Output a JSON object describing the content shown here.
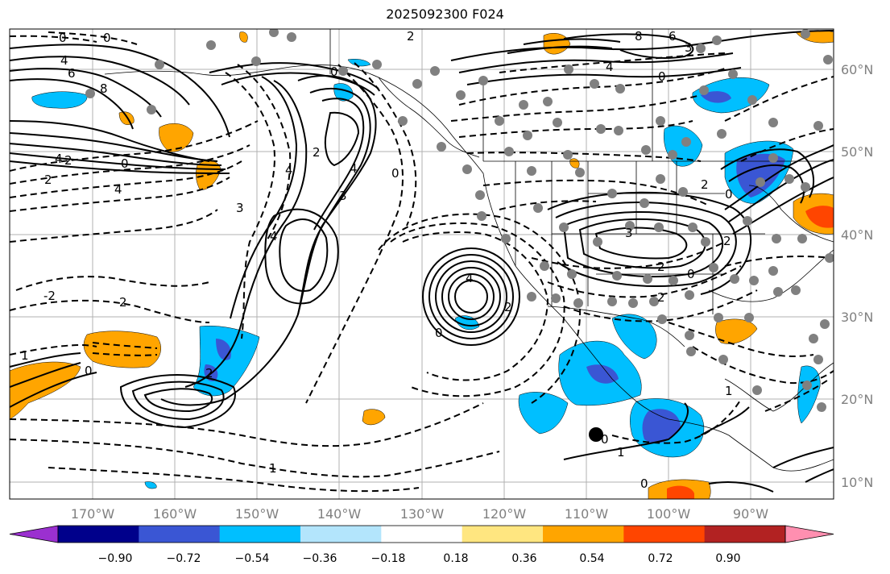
{
  "title": "2025092300 F024",
  "map": {
    "lat_labels": [
      "60°N",
      "50°N",
      "40°N",
      "30°N",
      "20°N",
      "10°N"
    ],
    "lon_labels": [
      "170°W",
      "160°W",
      "150°W",
      "140°W",
      "130°W",
      "120°W",
      "110°W",
      "100°W",
      "90°W"
    ],
    "contour_labels": [
      "0",
      "0",
      "4",
      "6",
      "8",
      "4",
      "2",
      "2",
      "2",
      "0",
      "4",
      "0",
      "2",
      "4",
      "3",
      "4",
      "4",
      "2",
      "0",
      "0",
      "1",
      "2",
      "3",
      "4",
      "2",
      "0",
      "8",
      "6",
      "3",
      "4",
      "0",
      "3",
      "2",
      "2",
      "0",
      "2",
      "2",
      "0",
      "1",
      "0",
      "1",
      "0",
      "1",
      "-2"
    ]
  },
  "colorbar": {
    "ticks": [
      "−0.90",
      "−0.72",
      "−0.54",
      "−0.36",
      "−0.18",
      "0.18",
      "0.36",
      "0.54",
      "0.72",
      "0.90"
    ],
    "colors": [
      "#9b30d0",
      "#00008b",
      "#3a56d4",
      "#00bfff",
      "#b3e5fc",
      "#ffffff",
      "#ffe680",
      "#ffa500",
      "#ff4500",
      "#b22222",
      "#ff8fb0"
    ]
  },
  "markers": {
    "track_color": "#808080",
    "center_color": "#000000"
  }
}
